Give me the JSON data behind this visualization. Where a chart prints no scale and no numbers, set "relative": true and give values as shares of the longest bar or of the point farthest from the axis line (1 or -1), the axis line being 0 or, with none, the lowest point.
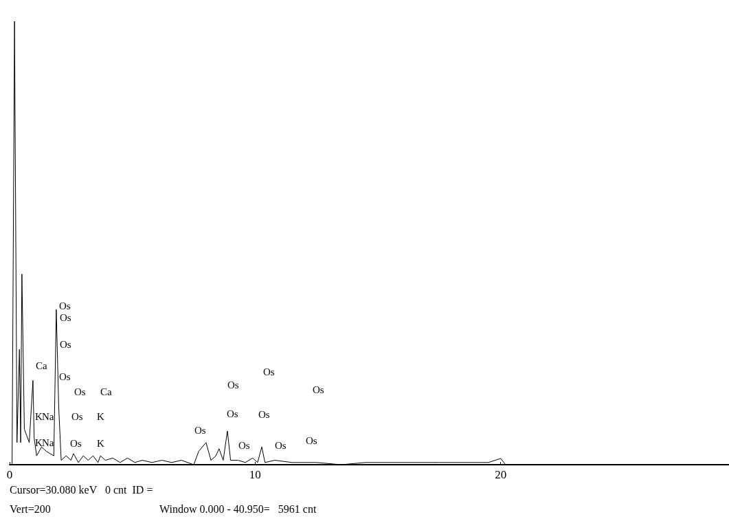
{
  "chart_data": {
    "type": "line",
    "relative": true,
    "xlim": [
      0,
      29.3
    ],
    "xticks": [
      0,
      10,
      20
    ],
    "grid": false,
    "marker": "none",
    "line_style": "solid",
    "x": [
      0.1,
      0.2,
      0.3,
      0.4,
      0.45,
      0.5,
      0.6,
      0.8,
      0.95,
      1.0,
      1.1,
      1.3,
      1.5,
      1.8,
      1.9,
      2.0,
      2.1,
      2.3,
      2.5,
      2.6,
      2.8,
      3.0,
      3.2,
      3.4,
      3.6,
      3.7,
      3.9,
      4.2,
      4.5,
      4.8,
      5.1,
      5.4,
      5.8,
      6.2,
      6.6,
      7.0,
      7.5,
      7.7,
      8.0,
      8.2,
      8.4,
      8.53,
      8.7,
      8.87,
      9.0,
      9.3,
      9.6,
      9.9,
      10.1,
      10.27,
      10.4,
      10.8,
      11.5,
      12.5,
      13.5,
      14.5,
      16.0,
      17.5,
      18.5,
      19.5,
      20.0,
      20.2,
      21,
      29.3
    ],
    "series": [
      {
        "color": "#000000",
        "values": [
          0,
          1,
          0.05,
          0.26,
          0.05,
          0.43,
          0.08,
          0.05,
          0.19,
          0.06,
          0.02,
          0.04,
          0.03,
          0.02,
          0.35,
          0.13,
          0.01,
          0.02,
          0.01,
          0.025,
          0.005,
          0.02,
          0.01,
          0.02,
          0.005,
          0.02,
          0.01,
          0.015,
          0.005,
          0.015,
          0.005,
          0.01,
          0.005,
          0.01,
          0.005,
          0.01,
          0.0,
          0.03,
          0.05,
          0.01,
          0.02,
          0.036,
          0.01,
          0.076,
          0.01,
          0.01,
          0.005,
          0.015,
          0.005,
          0.04,
          0.005,
          0.01,
          0.005,
          0.005,
          0.0,
          0.005,
          0.005,
          0.005,
          0.005,
          0.005,
          0.014,
          0.0,
          0.0,
          0.0
        ]
      }
    ],
    "annotations": [
      "Os",
      "Os",
      "Os",
      "Ca",
      "Os",
      "Os",
      "Ca",
      "K",
      "Na",
      "Os",
      "K",
      "K",
      "Na",
      "Os",
      "K",
      "Os",
      "Os",
      "Os",
      "Os",
      "Os",
      "Os",
      "Os",
      "Os",
      "Os",
      "Cursor=30.080 keV   0 cnt  ID =",
      "Vert=200",
      "Window 0.000 - 40.950=   5961 cnt"
    ]
  }
}
